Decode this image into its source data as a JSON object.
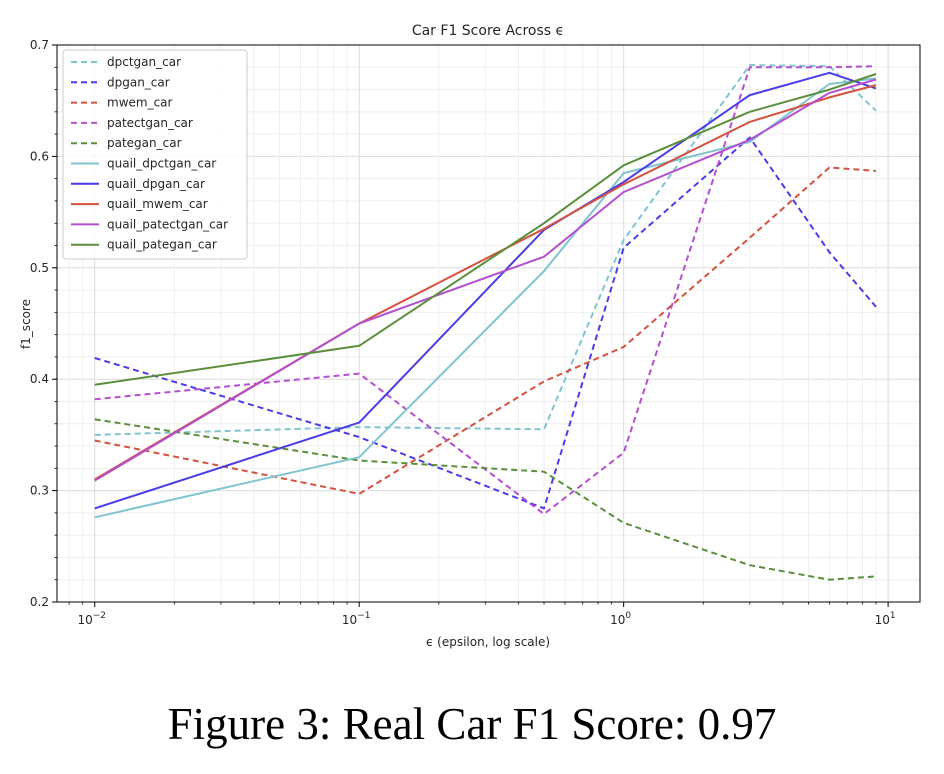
{
  "figure": {
    "caption": "Figure 3: Real Car F1 Score: 0.97"
  },
  "chart_data": {
    "type": "line",
    "title": "Car F1 Score Across ϵ",
    "xlabel": "ϵ (epsilon, log scale)",
    "ylabel": "f1_score",
    "xscale": "log",
    "xlim": [
      0.0072,
      13.2
    ],
    "ylim": [
      0.2,
      0.7
    ],
    "xticks": [
      {
        "value": 0.01,
        "base": "10",
        "exp": "−2"
      },
      {
        "value": 0.1,
        "base": "10",
        "exp": "−1"
      },
      {
        "value": 1,
        "base": "10",
        "exp": "0"
      },
      {
        "value": 10,
        "base": "10",
        "exp": "1"
      }
    ],
    "yticks": [
      {
        "value": 0.2,
        "label": "0.2"
      },
      {
        "value": 0.3,
        "label": "0.3"
      },
      {
        "value": 0.4,
        "label": "0.4"
      },
      {
        "value": 0.5,
        "label": "0.5"
      },
      {
        "value": 0.6,
        "label": "0.6"
      },
      {
        "value": 0.7,
        "label": "0.7"
      }
    ],
    "grid": true,
    "legend_position": "top-left",
    "x": [
      0.01,
      0.1,
      0.5,
      1,
      3,
      6,
      9
    ],
    "series": [
      {
        "name": "dpctgan_car",
        "style": "dashed",
        "color": "#7fc4cf",
        "values": [
          0.35,
          0.357,
          0.355,
          0.525,
          0.682,
          0.681,
          0.641
        ]
      },
      {
        "name": "dpgan_car",
        "style": "dashed",
        "color": "#4a3de8",
        "values": [
          0.419,
          0.348,
          0.284,
          0.518,
          0.617,
          0.514,
          0.465
        ]
      },
      {
        "name": "mwem_car",
        "style": "dashed",
        "color": "#d4523f",
        "values": [
          0.345,
          0.297,
          0.398,
          0.429,
          0.527,
          0.59,
          0.587
        ]
      },
      {
        "name": "patectgan_car",
        "style": "dashed",
        "color": "#b44fd2",
        "values": [
          0.382,
          0.405,
          0.279,
          0.334,
          0.68,
          0.68,
          0.681
        ]
      },
      {
        "name": "pategan_car",
        "style": "dashed",
        "color": "#5b8f3c",
        "values": [
          0.364,
          0.327,
          0.317,
          0.271,
          0.233,
          0.22,
          0.223
        ]
      },
      {
        "name": "quail_dpctgan_car",
        "style": "solid",
        "color": "#7fc4cf",
        "values": [
          0.276,
          0.33,
          0.497,
          0.585,
          0.613,
          0.665,
          0.67
        ]
      },
      {
        "name": "quail_dpgan_car",
        "style": "solid",
        "color": "#4a3de8",
        "values": [
          0.284,
          0.361,
          0.534,
          0.577,
          0.655,
          0.675,
          0.661
        ]
      },
      {
        "name": "quail_mwem_car",
        "style": "solid",
        "color": "#d4523f",
        "values": [
          0.31,
          0.45,
          0.535,
          0.575,
          0.631,
          0.653,
          0.664
        ]
      },
      {
        "name": "quail_patectgan_car",
        "style": "solid",
        "color": "#b44fd2",
        "values": [
          0.309,
          0.45,
          0.51,
          0.568,
          0.615,
          0.657,
          0.669
        ]
      },
      {
        "name": "quail_pategan_car",
        "style": "solid",
        "color": "#5b8f3c",
        "values": [
          0.395,
          0.43,
          0.54,
          0.592,
          0.64,
          0.66,
          0.674
        ]
      }
    ]
  }
}
